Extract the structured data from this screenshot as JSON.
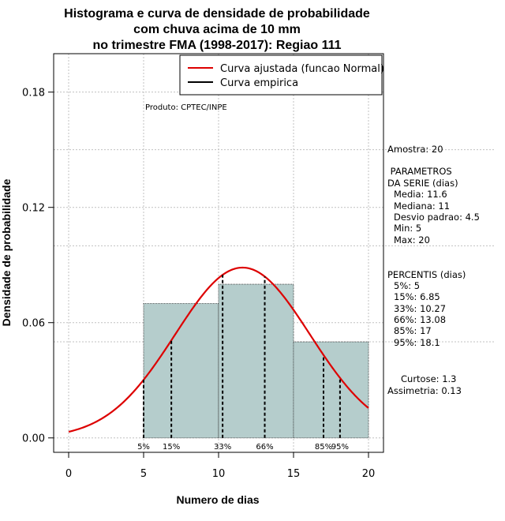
{
  "chart_data": {
    "type": "bar",
    "title_lines": [
      "Histograma e curva de densidade de probabilidade",
      "com chuva acima de 10 mm",
      "no trimestre FMA (1998-2017): Regiao 111"
    ],
    "xlabel": "Numero de dias",
    "ylabel": "Densidade de probabilidade",
    "xlim": [
      -1,
      21
    ],
    "ylim": [
      -0.0075,
      0.2
    ],
    "x_ticks": [
      0,
      5,
      10,
      15,
      20
    ],
    "y_ticks": [
      0.0,
      0.06,
      0.12,
      0.18
    ],
    "y_tick_labels": [
      "0.00",
      "0.06",
      "0.12",
      "0.18"
    ],
    "bins": [
      {
        "start": 5,
        "end": 10,
        "density": 0.07
      },
      {
        "start": 10,
        "end": 15,
        "density": 0.08
      },
      {
        "start": 15,
        "end": 20,
        "density": 0.05
      }
    ],
    "bar_color": "#b5cdcc",
    "normal_curve": {
      "mean": 11.6,
      "sd": 4.5,
      "x_range": [
        0,
        20
      ],
      "color": "#dd0000"
    },
    "percentile_lines": [
      {
        "label": "5%",
        "x": 5
      },
      {
        "label": "15%",
        "x": 6.85
      },
      {
        "label": "33%",
        "x": 10.27
      },
      {
        "label": "66%",
        "x": 13.08
      },
      {
        "label": "85%",
        "x": 17
      },
      {
        "label": "95%",
        "x": 18.1
      }
    ],
    "legend": {
      "position": "top-right",
      "entries": [
        {
          "label": "Curva ajustada (funcao Normal)",
          "color": "#dd0000"
        },
        {
          "label": "Curva empirica",
          "color": "#000000"
        }
      ]
    },
    "grid": true,
    "product_label": "Produto: CPTEC/INPE",
    "side_panel": {
      "amostra": "Amostra: 20",
      "parametros_title": [
        " PARAMETROS",
        "DA SERIE (dias)"
      ],
      "parametros": [
        "Media: 11.6",
        "Mediana: 11",
        "Desvio padrao: 4.5",
        "Min: 5",
        "Max: 20"
      ],
      "percentis_title": "PERCENTIS (dias)",
      "percentis": [
        "5%: 5",
        "15%: 6.85",
        "33%: 10.27",
        "66%: 13.08",
        "85%: 17",
        "95%: 18.1"
      ],
      "curtose": "Curtose: 1.3",
      "assimetria": "Assimetria: 0.13"
    }
  }
}
